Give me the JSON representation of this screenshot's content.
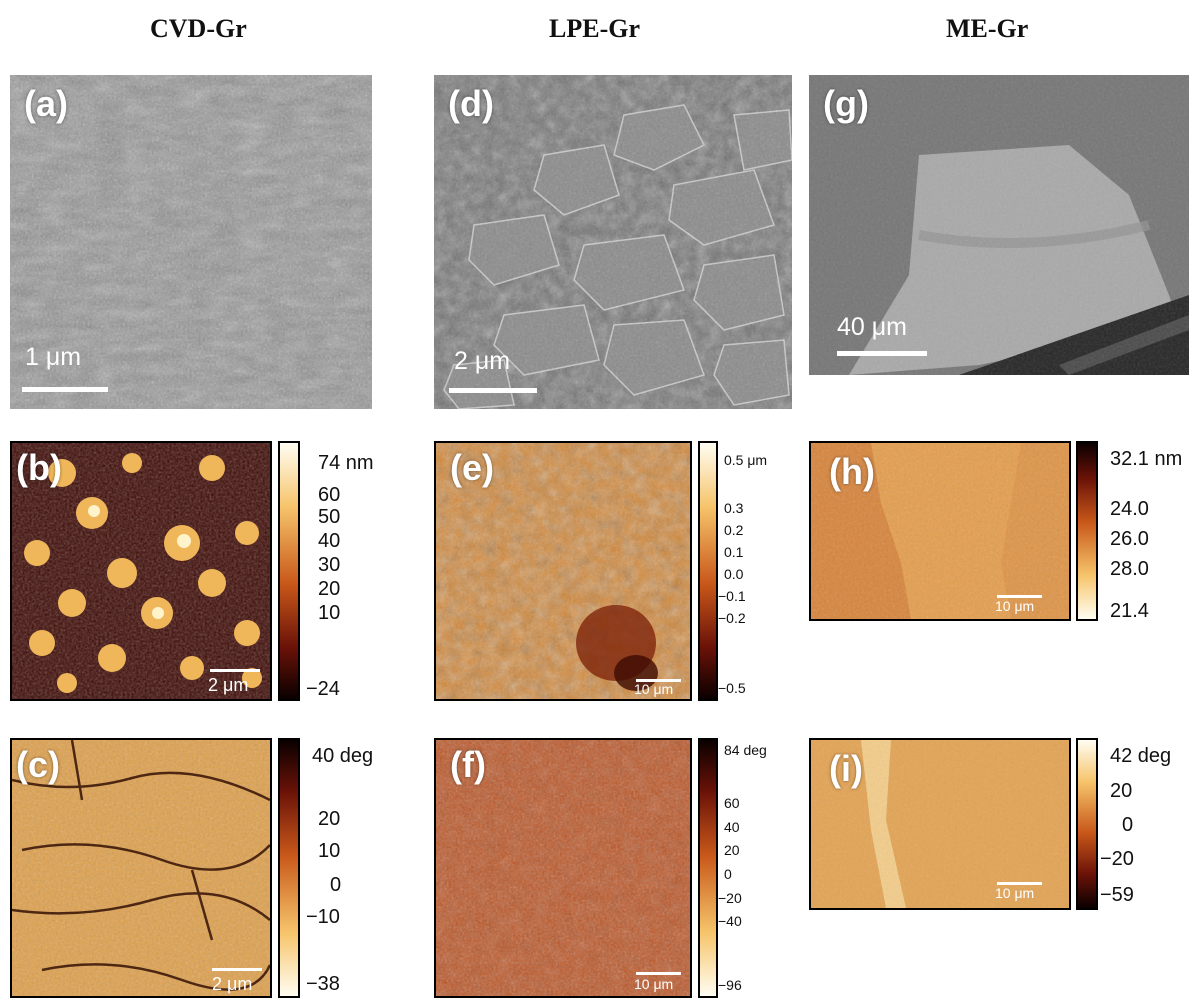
{
  "columns": {
    "cvd": "CVD-Gr",
    "lpe": "LPE-Gr",
    "me": "ME-Gr"
  },
  "panels": {
    "a": {
      "label": "(a)",
      "scale": "1 μm"
    },
    "b": {
      "label": "(b)",
      "scale": "2 μm"
    },
    "c": {
      "label": "(c)",
      "scale": "2 μm"
    },
    "d": {
      "label": "(d)",
      "scale": "2 μm"
    },
    "e": {
      "label": "(e)",
      "scale": "10 μm"
    },
    "f": {
      "label": "(f)",
      "scale": "10 μm"
    },
    "g": {
      "label": "(g)",
      "scale": "40 μm"
    },
    "h": {
      "label": "(h)",
      "scale": "10 μm"
    },
    "i": {
      "label": "(i)",
      "scale": "10 μm"
    }
  },
  "colorbars": {
    "b": [
      "74 nm",
      "60",
      "50",
      "40",
      "30",
      "20",
      "10",
      "−24"
    ],
    "c": [
      "40 deg",
      "20",
      "10",
      "0",
      "−10",
      "−38"
    ],
    "e": [
      "0.5 μm",
      "0.3",
      "0.2",
      "0.1",
      "0.0",
      "−0.1",
      "−0.2",
      "−0.5"
    ],
    "f": [
      "84 deg",
      "60",
      "40",
      "20",
      "0",
      "−20",
      "−40",
      "−96"
    ],
    "h": [
      "32.1 nm",
      "24.0",
      "26.0",
      "28.0",
      "21.4"
    ],
    "i": [
      "42 deg",
      "20",
      "0",
      "−20",
      "−59"
    ]
  }
}
